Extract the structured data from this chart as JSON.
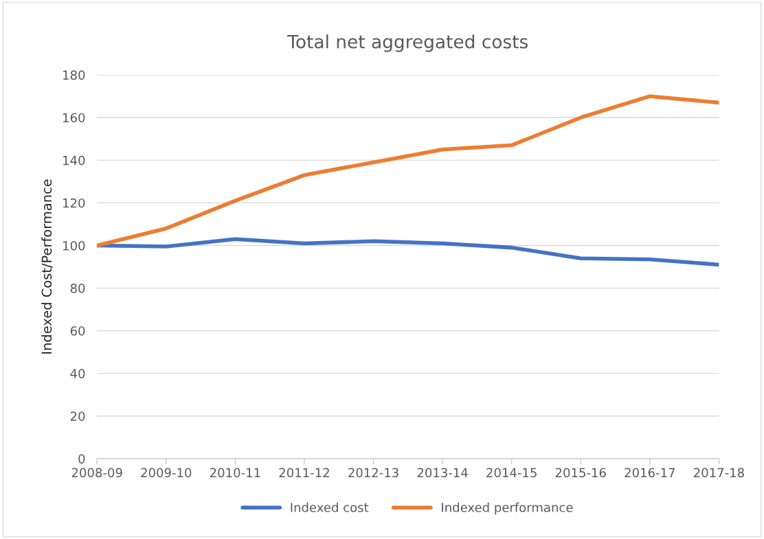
{
  "chart_data": {
    "type": "line",
    "title": "Total net aggregated costs",
    "ylabel": "Indexed Cost/Performance",
    "categories": [
      "2008-09",
      "2009-10",
      "2010-11",
      "2011-12",
      "2012-13",
      "2013-14",
      "2014-15",
      "2015-16",
      "2016-17",
      "2017-18"
    ],
    "series": [
      {
        "name": "Indexed cost",
        "color": "#4472c4",
        "values": [
          100,
          99.5,
          103,
          101,
          102,
          101,
          99,
          94,
          93.5,
          91
        ]
      },
      {
        "name": "Indexed performance",
        "color": "#ed7d31",
        "values": [
          100,
          108,
          121,
          133,
          139,
          145,
          147,
          160,
          170,
          167
        ]
      }
    ],
    "ylim": [
      0,
      180
    ],
    "yticks": [
      0,
      20,
      40,
      60,
      80,
      100,
      120,
      140,
      160,
      180
    ],
    "grid": "y",
    "legend": "bottom",
    "marker": "none",
    "line_style": "solid"
  }
}
